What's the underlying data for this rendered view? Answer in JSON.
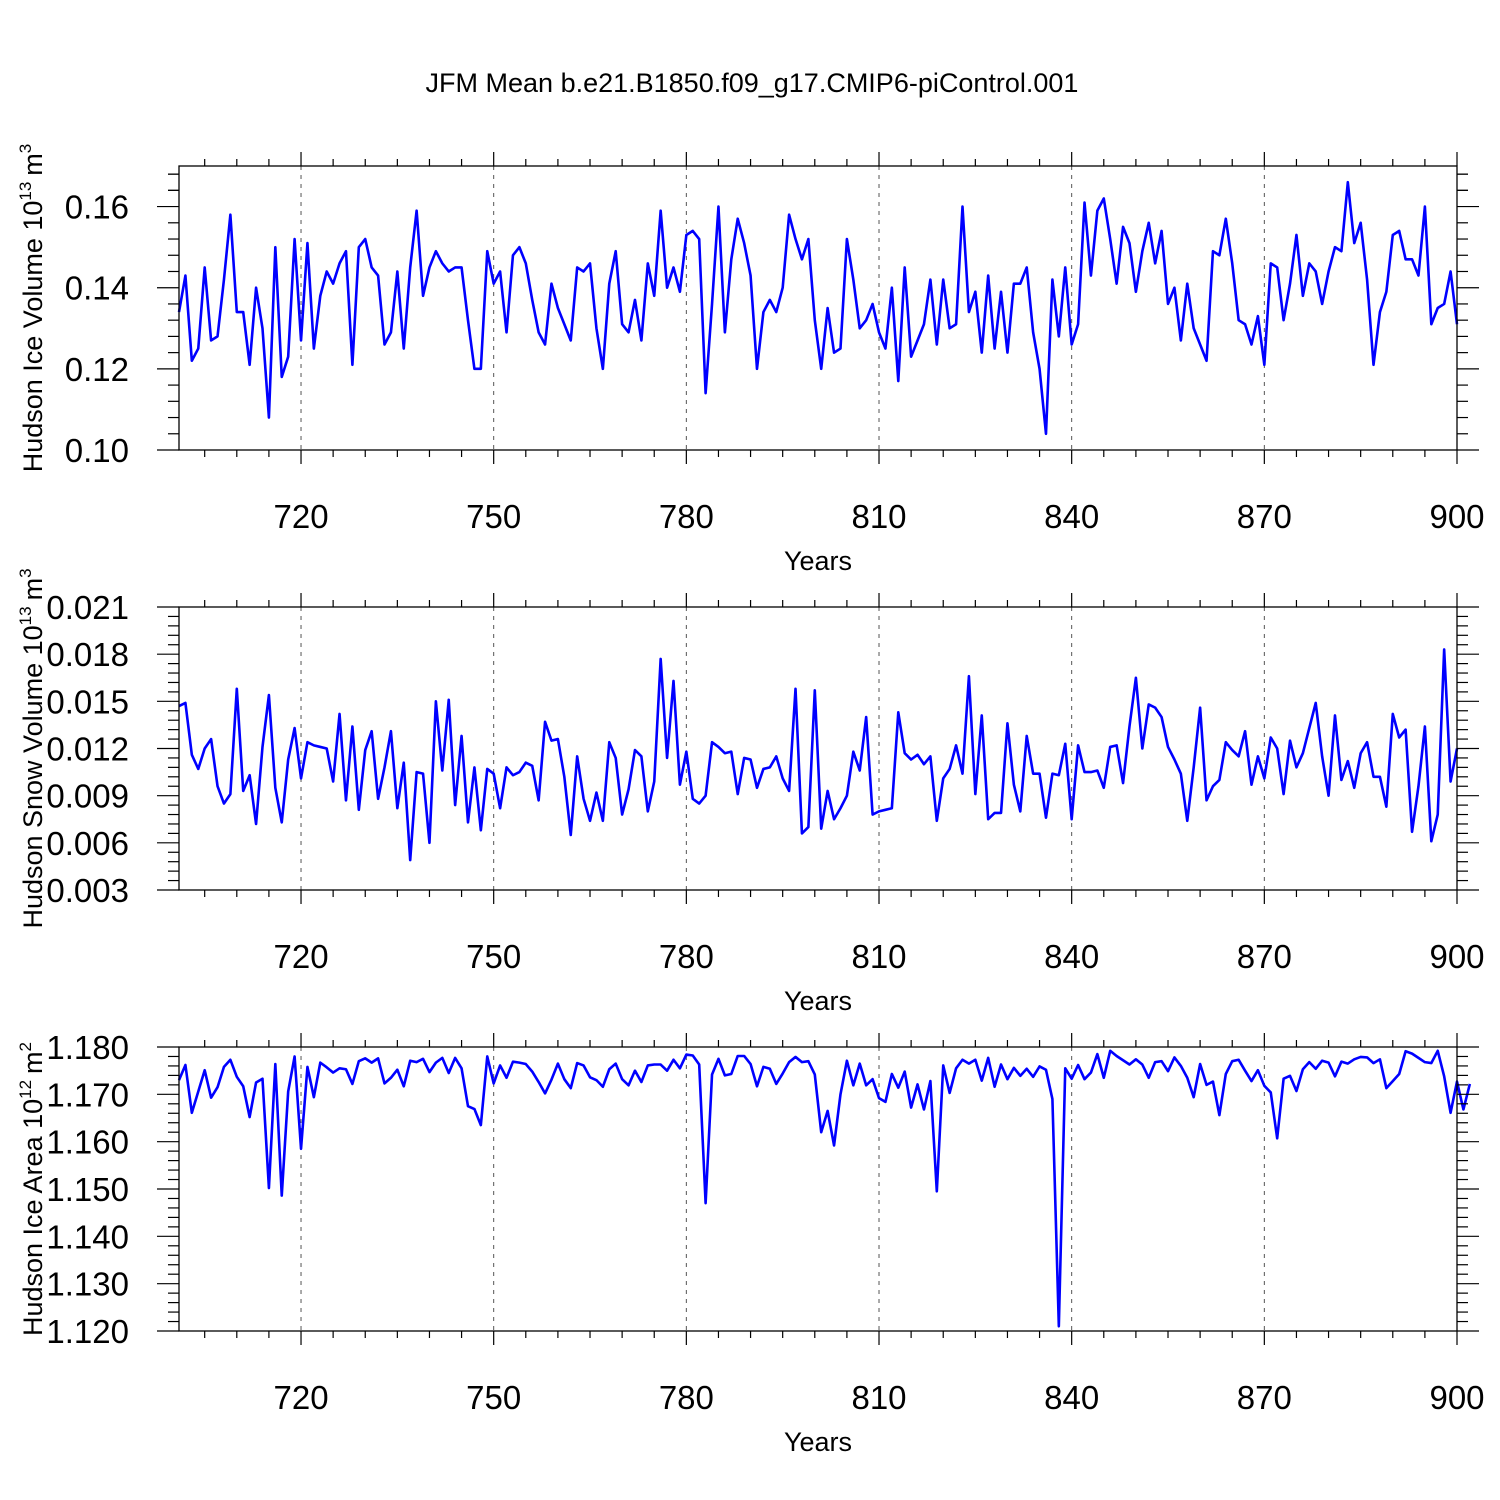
{
  "chart_data": {
    "title": "JFM Mean b.e21.B1850.f09_g17.CMIP6-piControl.001",
    "panels": [
      {
        "type": "line",
        "ylabel": "Hudson Ice Volume 10",
        "ylabel_exp": "13",
        "ylabel_unit": "m",
        "ylabel_unit_exp": "3",
        "xlabel": "Years",
        "xlim": [
          701,
          900
        ],
        "ylim": [
          0.1,
          0.17
        ],
        "yticks": [
          0.1,
          0.12,
          0.14,
          0.16
        ],
        "ytick_labels": [
          "0.10",
          "0.12",
          "0.14",
          "0.16"
        ],
        "xticks": [
          720,
          750,
          780,
          810,
          840,
          870,
          900
        ],
        "xtick_labels": [
          "720",
          "750",
          "780",
          "810",
          "840",
          "870",
          "900"
        ],
        "line_color": "#0000ff",
        "x_start": 701,
        "values": [
          0.134,
          0.143,
          0.122,
          0.125,
          0.145,
          0.127,
          0.128,
          0.142,
          0.158,
          0.134,
          0.134,
          0.121,
          0.14,
          0.13,
          0.108,
          0.15,
          0.118,
          0.123,
          0.152,
          0.127,
          0.151,
          0.125,
          0.138,
          0.144,
          0.141,
          0.146,
          0.149,
          0.121,
          0.15,
          0.152,
          0.145,
          0.143,
          0.126,
          0.129,
          0.144,
          0.125,
          0.145,
          0.159,
          0.138,
          0.145,
          0.149,
          0.146,
          0.144,
          0.145,
          0.145,
          0.132,
          0.12,
          0.12,
          0.149,
          0.141,
          0.144,
          0.129,
          0.148,
          0.15,
          0.146,
          0.137,
          0.129,
          0.126,
          0.141,
          0.135,
          0.131,
          0.127,
          0.145,
          0.144,
          0.146,
          0.13,
          0.12,
          0.141,
          0.149,
          0.131,
          0.129,
          0.137,
          0.127,
          0.146,
          0.138,
          0.159,
          0.14,
          0.145,
          0.139,
          0.153,
          0.154,
          0.152,
          0.114,
          0.136,
          0.16,
          0.129,
          0.147,
          0.157,
          0.151,
          0.143,
          0.12,
          0.134,
          0.137,
          0.134,
          0.14,
          0.158,
          0.152,
          0.147,
          0.152,
          0.132,
          0.12,
          0.135,
          0.124,
          0.125,
          0.152,
          0.142,
          0.13,
          0.132,
          0.136,
          0.129,
          0.125,
          0.14,
          0.117,
          0.145,
          0.123,
          0.127,
          0.131,
          0.142,
          0.126,
          0.142,
          0.13,
          0.131,
          0.16,
          0.134,
          0.139,
          0.124,
          0.143,
          0.125,
          0.139,
          0.124,
          0.141,
          0.141,
          0.145,
          0.129,
          0.12,
          0.104,
          0.142,
          0.128,
          0.145,
          0.126,
          0.131,
          0.161,
          0.143,
          0.159,
          0.162,
          0.152,
          0.141,
          0.155,
          0.151,
          0.139,
          0.149,
          0.156,
          0.146,
          0.154,
          0.136,
          0.14,
          0.127,
          0.141,
          0.13,
          0.126,
          0.122,
          0.149,
          0.148,
          0.157,
          0.146,
          0.132,
          0.131,
          0.126,
          0.133,
          0.121,
          0.146,
          0.145,
          0.132,
          0.141,
          0.153,
          0.138,
          0.146,
          0.144,
          0.136,
          0.144,
          0.15,
          0.149,
          0.166,
          0.151,
          0.156,
          0.142,
          0.121,
          0.134,
          0.139,
          0.153,
          0.154,
          0.147,
          0.147,
          0.143,
          0.16,
          0.131,
          0.135,
          0.136,
          0.144,
          0.131
        ]
      },
      {
        "type": "line",
        "ylabel": "Hudson Snow Volume 10",
        "ylabel_exp": "13",
        "ylabel_unit": "m",
        "ylabel_unit_exp": "3",
        "xlabel": "Years",
        "xlim": [
          701,
          900
        ],
        "ylim": [
          0.003,
          0.021
        ],
        "yticks": [
          0.003,
          0.006,
          0.009,
          0.012,
          0.015,
          0.018,
          0.021
        ],
        "ytick_labels": [
          "0.003",
          "0.006",
          "0.009",
          "0.012",
          "0.015",
          "0.018",
          "0.021"
        ],
        "xticks": [
          720,
          750,
          780,
          810,
          840,
          870,
          900
        ],
        "xtick_labels": [
          "720",
          "750",
          "780",
          "810",
          "840",
          "870",
          "900"
        ],
        "line_color": "#0000ff",
        "x_start": 701,
        "values": [
          0.0147,
          0.0149,
          0.0116,
          0.0107,
          0.012,
          0.0126,
          0.0096,
          0.0085,
          0.0091,
          0.0158,
          0.0093,
          0.0103,
          0.0072,
          0.0121,
          0.0154,
          0.0095,
          0.0073,
          0.0113,
          0.0133,
          0.0101,
          0.0124,
          0.0122,
          0.0121,
          0.012,
          0.0099,
          0.0142,
          0.0087,
          0.0134,
          0.0081,
          0.0119,
          0.0131,
          0.0088,
          0.0108,
          0.0131,
          0.0082,
          0.0111,
          0.0049,
          0.0105,
          0.0104,
          0.006,
          0.015,
          0.0106,
          0.0151,
          0.0084,
          0.0128,
          0.0073,
          0.0108,
          0.0068,
          0.0107,
          0.0104,
          0.0082,
          0.0108,
          0.0103,
          0.0105,
          0.0111,
          0.0109,
          0.0087,
          0.0137,
          0.0125,
          0.0126,
          0.0102,
          0.0065,
          0.0115,
          0.0088,
          0.0074,
          0.0092,
          0.0074,
          0.0124,
          0.0114,
          0.0078,
          0.0094,
          0.0119,
          0.0115,
          0.008,
          0.0099,
          0.0177,
          0.0114,
          0.0163,
          0.0097,
          0.0118,
          0.0088,
          0.0085,
          0.009,
          0.0124,
          0.0121,
          0.0117,
          0.0118,
          0.0091,
          0.0114,
          0.0113,
          0.0095,
          0.0107,
          0.0108,
          0.0115,
          0.0101,
          0.0093,
          0.0158,
          0.0066,
          0.007,
          0.0157,
          0.0069,
          0.0093,
          0.0075,
          0.0082,
          0.009,
          0.0118,
          0.0106,
          0.014,
          0.0078,
          0.008,
          0.0081,
          0.0082,
          0.0143,
          0.0117,
          0.0113,
          0.0116,
          0.011,
          0.0115,
          0.0074,
          0.0101,
          0.0107,
          0.0122,
          0.0104,
          0.0166,
          0.0091,
          0.0141,
          0.0075,
          0.0079,
          0.0079,
          0.0136,
          0.0097,
          0.008,
          0.0128,
          0.0104,
          0.0104,
          0.0076,
          0.0104,
          0.0103,
          0.0123,
          0.0075,
          0.0122,
          0.0105,
          0.0105,
          0.0106,
          0.0095,
          0.0121,
          0.0122,
          0.0098,
          0.0134,
          0.0165,
          0.012,
          0.0148,
          0.0146,
          0.014,
          0.0121,
          0.0113,
          0.0104,
          0.0074,
          0.0108,
          0.0146,
          0.0087,
          0.0096,
          0.01,
          0.0124,
          0.0119,
          0.0115,
          0.0131,
          0.0097,
          0.0115,
          0.0101,
          0.0127,
          0.012,
          0.0091,
          0.0125,
          0.0108,
          0.0117,
          0.0133,
          0.0149,
          0.0115,
          0.009,
          0.0141,
          0.01,
          0.0112,
          0.0095,
          0.0117,
          0.0124,
          0.0102,
          0.0102,
          0.0083,
          0.0142,
          0.0127,
          0.0132,
          0.0067,
          0.0096,
          0.0134,
          0.0061,
          0.0078,
          0.0183,
          0.0099,
          0.012
        ]
      },
      {
        "type": "line",
        "ylabel": "Hudson Ice Area 10",
        "ylabel_exp": "12",
        "ylabel_unit": "m",
        "ylabel_unit_exp": "2",
        "xlabel": "Years",
        "xlim": [
          701,
          900
        ],
        "ylim": [
          1.12,
          1.18
        ],
        "yticks": [
          1.12,
          1.13,
          1.14,
          1.15,
          1.16,
          1.17,
          1.18
        ],
        "ytick_labels": [
          "1.120",
          "1.130",
          "1.140",
          "1.150",
          "1.160",
          "1.170",
          "1.180"
        ],
        "xticks": [
          720,
          750,
          780,
          810,
          840,
          870,
          900
        ],
        "xtick_labels": [
          "720",
          "750",
          "780",
          "810",
          "840",
          "870",
          "900"
        ],
        "line_color": "#0000ff",
        "x_start": 701,
        "values": [
          1.173,
          1.1762,
          1.1661,
          1.1706,
          1.1751,
          1.1693,
          1.1715,
          1.1758,
          1.1773,
          1.1737,
          1.1717,
          1.1652,
          1.1725,
          1.1733,
          1.1502,
          1.1764,
          1.1486,
          1.1706,
          1.178,
          1.1585,
          1.1758,
          1.1694,
          1.1767,
          1.1757,
          1.1746,
          1.1755,
          1.1753,
          1.1722,
          1.177,
          1.1776,
          1.1767,
          1.1776,
          1.1723,
          1.1735,
          1.1752,
          1.1717,
          1.1771,
          1.1768,
          1.1775,
          1.1747,
          1.1767,
          1.1777,
          1.1745,
          1.1777,
          1.1755,
          1.1675,
          1.1669,
          1.1635,
          1.178,
          1.1723,
          1.1761,
          1.1735,
          1.1769,
          1.1767,
          1.1764,
          1.1748,
          1.1726,
          1.1702,
          1.1731,
          1.1765,
          1.1732,
          1.1713,
          1.1766,
          1.1761,
          1.1736,
          1.173,
          1.1716,
          1.1753,
          1.1765,
          1.1732,
          1.1719,
          1.175,
          1.1726,
          1.1761,
          1.1763,
          1.1763,
          1.175,
          1.1773,
          1.1755,
          1.1784,
          1.1782,
          1.1763,
          1.147,
          1.1742,
          1.1775,
          1.174,
          1.1743,
          1.1781,
          1.1781,
          1.1764,
          1.1717,
          1.1758,
          1.1754,
          1.1722,
          1.1744,
          1.1768,
          1.1779,
          1.1768,
          1.177,
          1.1742,
          1.162,
          1.1665,
          1.1592,
          1.17,
          1.1771,
          1.1719,
          1.1765,
          1.1719,
          1.1732,
          1.1692,
          1.1684,
          1.1743,
          1.1714,
          1.1748,
          1.1672,
          1.1721,
          1.1668,
          1.1728,
          1.1495,
          1.1761,
          1.1703,
          1.1755,
          1.1773,
          1.1765,
          1.1773,
          1.1729,
          1.1777,
          1.1716,
          1.1763,
          1.1732,
          1.1756,
          1.1739,
          1.1754,
          1.1737,
          1.1759,
          1.1752,
          1.169,
          1.121,
          1.1755,
          1.1733,
          1.1762,
          1.1732,
          1.1746,
          1.1785,
          1.1735,
          1.1792,
          1.1781,
          1.1772,
          1.1763,
          1.1774,
          1.1763,
          1.1735,
          1.1768,
          1.177,
          1.1749,
          1.1778,
          1.176,
          1.1735,
          1.1694,
          1.1764,
          1.172,
          1.1727,
          1.1656,
          1.1743,
          1.177,
          1.1773,
          1.175,
          1.1728,
          1.1751,
          1.1718,
          1.1704,
          1.1607,
          1.1733,
          1.1739,
          1.1707,
          1.1753,
          1.1768,
          1.1754,
          1.1771,
          1.1767,
          1.1738,
          1.1769,
          1.1765,
          1.1774,
          1.1779,
          1.1778,
          1.1766,
          1.1774,
          1.1713,
          1.1728,
          1.1743,
          1.1791,
          1.1786,
          1.1777,
          1.1768,
          1.1766,
          1.1792,
          1.1738,
          1.1661,
          1.1727,
          1.1668,
          1.1722
        ]
      }
    ]
  }
}
